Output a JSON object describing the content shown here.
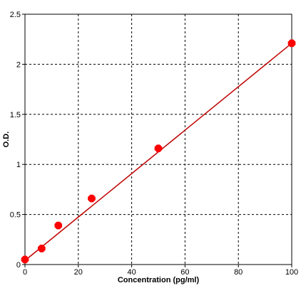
{
  "chart_data": {
    "type": "scatter",
    "title": "",
    "xlabel": "Concentration (pg/ml)",
    "ylabel": "O.D.",
    "xlim": [
      0,
      100
    ],
    "ylim": [
      0,
      2.5
    ],
    "xticks": [
      0,
      20,
      40,
      60,
      80,
      100
    ],
    "yticks": [
      0,
      0.5,
      1,
      1.5,
      2,
      2.5
    ],
    "xtick_labels": [
      "0",
      "20",
      "40",
      "60",
      "80",
      "100"
    ],
    "ytick_labels": [
      "0",
      "0.5",
      "1",
      "1.5",
      "2",
      "2.5"
    ],
    "grid": true,
    "points": [
      {
        "x": 0,
        "y": 0.05
      },
      {
        "x": 6.25,
        "y": 0.16
      },
      {
        "x": 12.5,
        "y": 0.39
      },
      {
        "x": 25,
        "y": 0.66
      },
      {
        "x": 50,
        "y": 1.16
      },
      {
        "x": 100,
        "y": 2.21
      }
    ],
    "fit_line": {
      "x": [
        0,
        100
      ],
      "y": [
        0.04,
        2.21
      ]
    },
    "colors": {
      "marker": "#ff0000",
      "line": "#c00000",
      "grid": "#000000",
      "axis": "#000000"
    }
  }
}
